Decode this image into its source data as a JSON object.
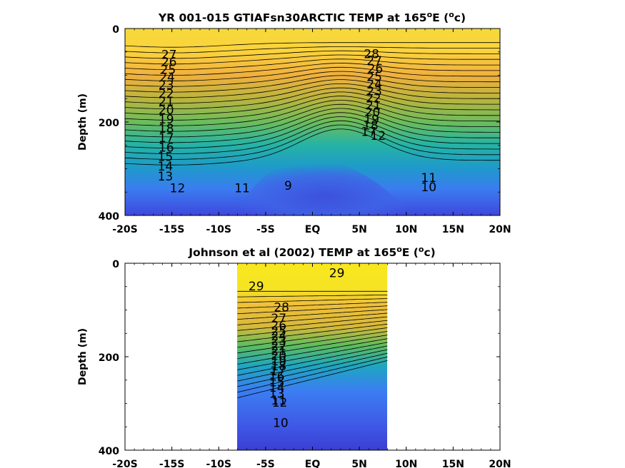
{
  "chart_data": [
    {
      "type": "heatmap",
      "title_prefix": "YR 001-015 GTIAFsn30ARCTIC TEMP at 165",
      "title_sup": "o",
      "title_mid": "E (",
      "title_sup2": "o",
      "title_suffix": "c)",
      "ylabel": "Depth (m)",
      "xlabel": "",
      "xlim": [
        -20,
        20
      ],
      "ylim": [
        0,
        400
      ],
      "x_ticks": [
        -20,
        -15,
        -10,
        -5,
        0,
        5,
        10,
        15,
        20
      ],
      "x_ticklabels": [
        "-20S",
        "-15S",
        "-10S",
        "-5S",
        "EQ",
        "5N",
        "10N",
        "15N",
        "20N"
      ],
      "y_ticks": [
        0,
        200,
        400
      ],
      "y_ticklabels": [
        "0",
        "200",
        "400"
      ],
      "grid": false,
      "data_extent": [
        -20,
        20
      ],
      "contour_interval": 1,
      "contour_labels": [
        {
          "text": "27",
          "x": -15.3,
          "y": 65
        },
        {
          "text": "26",
          "x": -15.3,
          "y": 80
        },
        {
          "text": "25",
          "x": -15.4,
          "y": 97
        },
        {
          "text": "24",
          "x": -15.5,
          "y": 113
        },
        {
          "text": "23",
          "x": -15.6,
          "y": 130
        },
        {
          "text": "22",
          "x": -15.6,
          "y": 148
        },
        {
          "text": "21",
          "x": -15.6,
          "y": 165
        },
        {
          "text": "20",
          "x": -15.6,
          "y": 183
        },
        {
          "text": "19",
          "x": -15.6,
          "y": 203
        },
        {
          "text": "18",
          "x": -15.6,
          "y": 223
        },
        {
          "text": "17",
          "x": -15.6,
          "y": 243
        },
        {
          "text": "16",
          "x": -15.6,
          "y": 263
        },
        {
          "text": "15",
          "x": -15.7,
          "y": 283
        },
        {
          "text": "14",
          "x": -15.7,
          "y": 304
        },
        {
          "text": "13",
          "x": -15.7,
          "y": 325
        },
        {
          "text": "12",
          "x": -14.4,
          "y": 350
        },
        {
          "text": "11",
          "x": -7.5,
          "y": 350
        },
        {
          "text": "9",
          "x": -2.6,
          "y": 345
        },
        {
          "text": "28",
          "x": 6.3,
          "y": 63
        },
        {
          "text": "27",
          "x": 6.6,
          "y": 78
        },
        {
          "text": "26",
          "x": 6.7,
          "y": 95
        },
        {
          "text": "25",
          "x": 6.6,
          "y": 112
        },
        {
          "text": "24",
          "x": 6.6,
          "y": 128
        },
        {
          "text": "23",
          "x": 6.6,
          "y": 143
        },
        {
          "text": "22",
          "x": 6.5,
          "y": 158
        },
        {
          "text": "21",
          "x": 6.5,
          "y": 173
        },
        {
          "text": "20",
          "x": 6.4,
          "y": 188
        },
        {
          "text": "19",
          "x": 6.3,
          "y": 203
        },
        {
          "text": "18",
          "x": 6.2,
          "y": 216
        },
        {
          "text": "17",
          "x": 6.0,
          "y": 230
        },
        {
          "text": "12",
          "x": 7.0,
          "y": 238
        },
        {
          "text": "11",
          "x": 12.4,
          "y": 328
        },
        {
          "text": "10",
          "x": 12.4,
          "y": 348
        }
      ]
    },
    {
      "type": "heatmap",
      "title_prefix": "Johnson et al (2002) TEMP at 165",
      "title_sup": "o",
      "title_mid": "E (",
      "title_sup2": "o",
      "title_suffix": "c)",
      "ylabel": "Depth (m)",
      "xlabel": "",
      "xlim": [
        -20,
        20
      ],
      "ylim": [
        0,
        400
      ],
      "x_ticks": [
        -20,
        -15,
        -10,
        -5,
        0,
        5,
        10,
        15,
        20
      ],
      "x_ticklabels": [
        "-20S",
        "-15S",
        "-10S",
        "-5S",
        "EQ",
        "5N",
        "10N",
        "15N",
        "20N"
      ],
      "y_ticks": [
        0,
        200,
        400
      ],
      "y_ticklabels": [
        "0",
        "200",
        "400"
      ],
      "grid": false,
      "data_extent": [
        -8,
        8
      ],
      "contour_interval": 1,
      "contour_labels": [
        {
          "text": "29",
          "x": -6.0,
          "y": 58
        },
        {
          "text": "29",
          "x": 2.6,
          "y": 30
        },
        {
          "text": "28",
          "x": -3.3,
          "y": 103
        },
        {
          "text": "27",
          "x": -3.6,
          "y": 127
        },
        {
          "text": "26",
          "x": -3.6,
          "y": 142
        },
        {
          "text": "25",
          "x": -3.6,
          "y": 154
        },
        {
          "text": "24",
          "x": -3.6,
          "y": 165
        },
        {
          "text": "23",
          "x": -3.6,
          "y": 175
        },
        {
          "text": "22",
          "x": -3.6,
          "y": 186
        },
        {
          "text": "21",
          "x": -3.6,
          "y": 196
        },
        {
          "text": "20",
          "x": -3.6,
          "y": 207
        },
        {
          "text": "19",
          "x": -3.6,
          "y": 218
        },
        {
          "text": "18",
          "x": -3.6,
          "y": 229
        },
        {
          "text": "17",
          "x": -3.7,
          "y": 240
        },
        {
          "text": "16",
          "x": -3.8,
          "y": 251
        },
        {
          "text": "15",
          "x": -3.8,
          "y": 263
        },
        {
          "text": "14",
          "x": -3.8,
          "y": 275
        },
        {
          "text": "13",
          "x": -3.8,
          "y": 288
        },
        {
          "text": "12",
          "x": -3.5,
          "y": 307
        },
        {
          "text": "11",
          "x": -3.6,
          "y": 302
        },
        {
          "text": "10",
          "x": -3.4,
          "y": 350
        }
      ]
    }
  ]
}
